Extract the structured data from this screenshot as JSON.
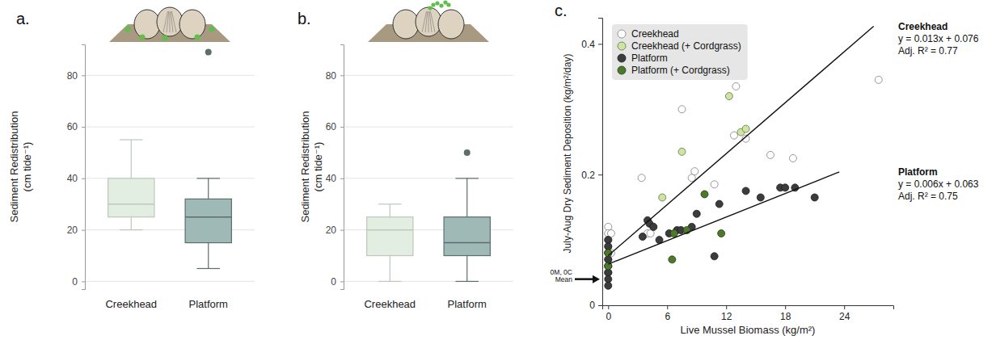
{
  "chart_data": [
    {
      "type": "box",
      "panel_label": "a.",
      "categories": [
        "Creekhead",
        "Platform"
      ],
      "y_label": "Sediment Redistribution (cm tide⁻¹)",
      "colors": [
        "#e2eee1",
        "#9fbab6"
      ],
      "boxes": [
        {
          "min": 20,
          "q1": 25,
          "median": 30,
          "q3": 40,
          "max": 55,
          "outliers": []
        },
        {
          "min": 5,
          "q1": 15,
          "median": 25,
          "q3": 32,
          "max": 40,
          "outliers": [
            89
          ]
        }
      ],
      "ylim": [
        -3,
        92
      ],
      "yticks": [
        0,
        20,
        40,
        60,
        80
      ],
      "grid": true
    },
    {
      "type": "box",
      "panel_label": "b.",
      "categories": [
        "Creekhead",
        "Platform"
      ],
      "y_label": "Sediment Redistribution (cm tide⁻¹)",
      "colors": [
        "#e2eee1",
        "#9fbab6"
      ],
      "boxes": [
        {
          "min": 0,
          "q1": 10,
          "median": 20,
          "q3": 25,
          "max": 30,
          "outliers": []
        },
        {
          "min": 0,
          "q1": 10,
          "median": 15,
          "q3": 25,
          "max": 40,
          "outliers": [
            50
          ]
        }
      ],
      "ylim": [
        -3,
        92
      ],
      "yticks": [
        0,
        20,
        40,
        60,
        80
      ],
      "grid": true
    },
    {
      "type": "scatter",
      "panel_label": "c.",
      "x_label": "Live Mussel Biomass (kg/m²)",
      "y_label": "July-Aug Dry Sediment Deposition (kg/m²/day)",
      "xlim": [
        -0.6,
        29
      ],
      "xticks": [
        0,
        6,
        12,
        18,
        24
      ],
      "ylim": [
        0,
        0.44
      ],
      "yticks": [
        0,
        0.2,
        0.4
      ],
      "legend": "upper left",
      "series": [
        {
          "name": "Creekhead",
          "color": "#ffffff",
          "marker": "circle",
          "x": [
            0,
            0,
            0,
            0,
            0,
            0,
            0.3,
            0.3,
            3.4,
            4.0,
            4.3,
            4.6,
            7.5,
            8.5,
            8.8,
            10.8,
            12.8,
            13.0,
            14.0,
            16.5,
            18.8,
            27.5
          ],
          "y": [
            0.12,
            0.11,
            0.1,
            0.08,
            0.06,
            0.05,
            0.08,
            0.11,
            0.195,
            0.11,
            0.11,
            0.12,
            0.3,
            0.195,
            0.205,
            0.185,
            0.26,
            0.335,
            0.255,
            0.23,
            0.225,
            0.345
          ]
        },
        {
          "name": "Creekhead (+ Cordgrass)",
          "color": "#cde5a0",
          "marker": "circle",
          "x": [
            0,
            0,
            0,
            5.5,
            7.5,
            12.3,
            13.5,
            14.0
          ],
          "y": [
            0.09,
            0.07,
            0.05,
            0.165,
            0.235,
            0.32,
            0.265,
            0.27
          ]
        },
        {
          "name": "Platform",
          "color": "#3c3c3c",
          "marker": "circle",
          "x": [
            0,
            0,
            0,
            0,
            0,
            0,
            0,
            0,
            3.5,
            4.0,
            4.2,
            4.6,
            5.2,
            6.2,
            7.0,
            7.4,
            8.5,
            9.0,
            10.8,
            11.3,
            14.0,
            15.5,
            17.5,
            18.0,
            19.0,
            21.0
          ],
          "y": [
            0.1,
            0.09,
            0.08,
            0.07,
            0.06,
            0.05,
            0.04,
            0.03,
            0.105,
            0.13,
            0.125,
            0.12,
            0.1,
            0.11,
            0.115,
            0.115,
            0.12,
            0.14,
            0.075,
            0.155,
            0.175,
            0.165,
            0.18,
            0.18,
            0.18,
            0.165
          ]
        },
        {
          "name": "Platform (+ Cordgrass)",
          "color": "#4d7a2a",
          "marker": "circle",
          "x": [
            0,
            0,
            6.5,
            6.7,
            8.0,
            9.8,
            11.5
          ],
          "y": [
            0.08,
            0.06,
            0.07,
            0.11,
            0.115,
            0.17,
            0.11
          ]
        }
      ],
      "fits": [
        {
          "name": "Creekhead",
          "equation": "y = 0.013x + 0.076",
          "r2_label": "Adj. R² = 0.77",
          "slope": 0.013,
          "intercept": 0.076,
          "x_range": [
            0,
            27
          ]
        },
        {
          "name": "Platform",
          "equation": "y = 0.006x + 0.063",
          "r2_label": "Adj. R² = 0.75",
          "slope": 0.006,
          "intercept": 0.063,
          "x_range": [
            0,
            23.5
          ]
        }
      ],
      "annotations": [
        {
          "text": "0M, 0C Mean",
          "y": 0.04
        }
      ]
    }
  ]
}
